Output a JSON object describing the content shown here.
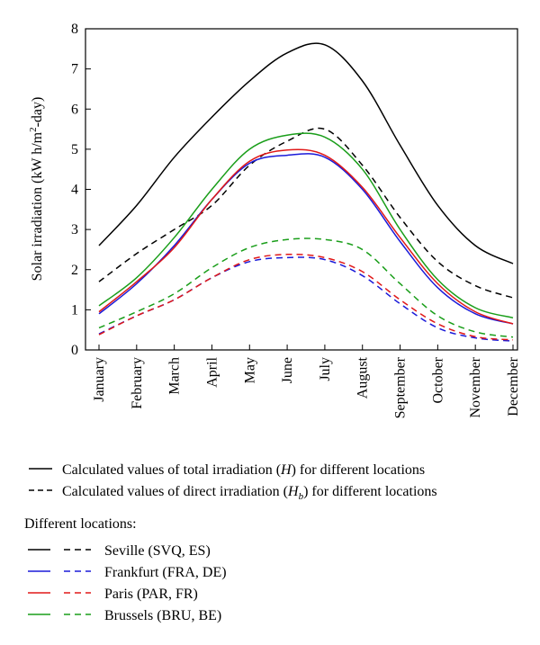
{
  "chart_data": {
    "type": "line",
    "xlabel": "",
    "ylabel": "Solar irradiation (kW h/m²-day)",
    "ylabel_parts": {
      "prefix": "Solar irradiation (kW h/m",
      "sup": "2",
      "suffix": "-day)"
    },
    "ylim": [
      0,
      8
    ],
    "yticks": [
      "0",
      "1",
      "2",
      "3",
      "4",
      "5",
      "6",
      "7",
      "8"
    ],
    "grid": false,
    "categories": [
      "January",
      "February",
      "March",
      "April",
      "May",
      "June",
      "July",
      "August",
      "September",
      "October",
      "November",
      "December"
    ],
    "series": [
      {
        "name": "Seville (SVQ, ES) - total",
        "color": "#000000",
        "style": "solid",
        "values": [
          2.6,
          3.6,
          4.8,
          5.8,
          6.7,
          7.4,
          7.6,
          6.7,
          5.1,
          3.6,
          2.6,
          2.15
        ]
      },
      {
        "name": "Seville (SVQ, ES) - direct",
        "color": "#000000",
        "style": "dashed",
        "values": [
          1.7,
          2.4,
          3.0,
          3.6,
          4.6,
          5.2,
          5.5,
          4.6,
          3.3,
          2.2,
          1.6,
          1.3
        ]
      },
      {
        "name": "Frankfurt (FRA, DE) - total",
        "color": "#1a1ad9",
        "style": "solid",
        "values": [
          0.9,
          1.65,
          2.6,
          3.75,
          4.65,
          4.85,
          4.8,
          4.0,
          2.7,
          1.55,
          0.9,
          0.65
        ]
      },
      {
        "name": "Frankfurt (FRA, DE) - direct",
        "color": "#1a1ad9",
        "style": "dashed",
        "values": [
          0.4,
          0.85,
          1.25,
          1.8,
          2.2,
          2.3,
          2.25,
          1.85,
          1.15,
          0.55,
          0.3,
          0.22
        ]
      },
      {
        "name": "Paris (PAR, FR) - total",
        "color": "#e01818",
        "style": "solid",
        "values": [
          0.95,
          1.7,
          2.55,
          3.75,
          4.7,
          4.98,
          4.85,
          4.05,
          2.8,
          1.65,
          0.95,
          0.65
        ]
      },
      {
        "name": "Paris (PAR, FR) - direct",
        "color": "#e01818",
        "style": "dashed",
        "values": [
          0.38,
          0.85,
          1.25,
          1.8,
          2.25,
          2.38,
          2.3,
          1.95,
          1.25,
          0.65,
          0.33,
          0.25
        ]
      },
      {
        "name": "Brussels (BRU, BE) - total",
        "color": "#1a9e1a",
        "style": "solid",
        "values": [
          1.1,
          1.8,
          2.8,
          4.0,
          5.0,
          5.35,
          5.3,
          4.5,
          3.0,
          1.75,
          1.05,
          0.8
        ]
      },
      {
        "name": "Brussels (BRU, BE) - direct",
        "color": "#1a9e1a",
        "style": "dashed",
        "values": [
          0.55,
          0.95,
          1.4,
          2.05,
          2.55,
          2.75,
          2.75,
          2.5,
          1.65,
          0.85,
          0.45,
          0.32
        ]
      }
    ]
  },
  "legend": {
    "total_parts": {
      "prefix": "Calculated values of total irradiation (",
      "var": "H",
      "suffix": ") for different locations"
    },
    "direct_parts": {
      "prefix": "Calculated values of direct irradiation (",
      "var": "H",
      "sub": "b",
      "suffix": ") for different locations"
    },
    "locations_title": "Different locations:",
    "locations": [
      {
        "label": "Seville (SVQ, ES)",
        "color": "#000000"
      },
      {
        "label": "Frankfurt (FRA, DE)",
        "color": "#1a1ad9"
      },
      {
        "label": "Paris (PAR, FR)",
        "color": "#e01818"
      },
      {
        "label": "Brussels (BRU, BE)",
        "color": "#1a9e1a"
      }
    ]
  }
}
